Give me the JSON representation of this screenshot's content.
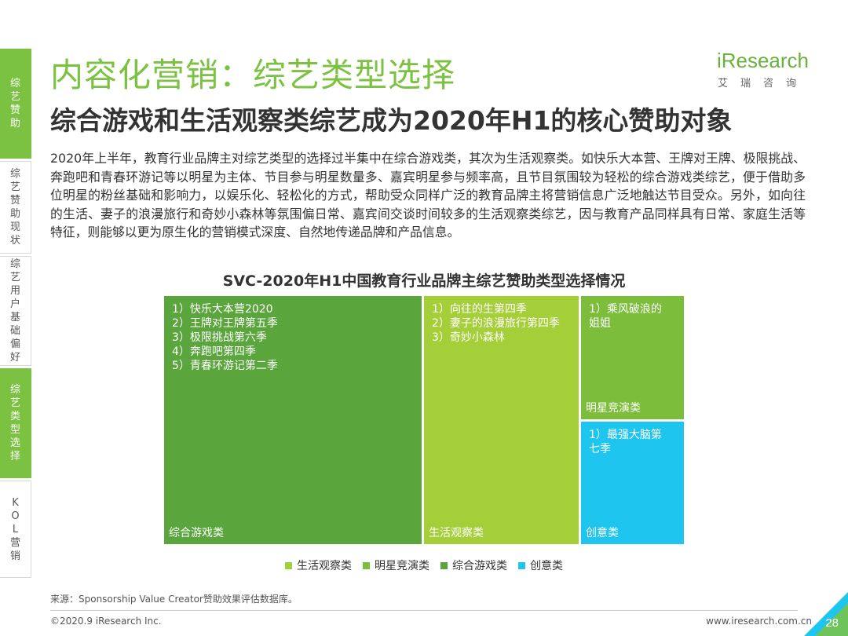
{
  "side_nav": [
    {
      "label": "综艺赞助",
      "active": true
    },
    {
      "label": "综艺赞助现状",
      "active": false
    },
    {
      "label": "综艺用户基础偏好",
      "active": false
    },
    {
      "label": "综艺类型选择",
      "active": true
    },
    {
      "label": "KOL营销",
      "active": false
    }
  ],
  "header": {
    "title": "内容化营销：综艺类型选择",
    "subtitle": "综合游戏和生活观察类综艺成为2020年H1的核心赞助对象"
  },
  "logo": {
    "word": "iResearch",
    "sub": "艾瑞咨询"
  },
  "body_text": "2020年上半年，教育行业品牌主对综艺类型的选择过半集中在综合游戏类，其次为生活观察类。如快乐大本营、王牌对王牌、极限挑战、奔跑吧和青春环游记等以明星为主体、节目参与明星数量多、嘉宾明星参与频率高，且节目氛围较为轻松的综合游戏类综艺，便于借助多位明星的粉丝基础和影响力，以娱乐化、轻松化的方式，帮助受众同样广泛的教育品牌主将营销信息广泛地触达节目受众。另外，如向往的生活、妻子的浪漫旅行和奇妙小森林等氛围偏日常、嘉宾间交谈时间较多的生活观察类综艺，因与教育产品同样具有日常、家庭生活等特征，则能够以更为原生化的营销模式深度、自然地传递品牌和产品信息。",
  "chart_data": {
    "type": "treemap",
    "title": "SVC-2020年H1中国教育行业品牌主综艺赞助类型选择情况",
    "nodes": [
      {
        "category": "综合游戏类",
        "value": 50,
        "color": "#5aa53c",
        "items": [
          "1）快乐大本营2020",
          "2）王牌对王牌第五季",
          "3）极限挑战第六季",
          "4）奔跑吧第四季",
          "5）青春环游记第二季"
        ]
      },
      {
        "category": "生活观察类",
        "value": 30,
        "color": "#a5cf38",
        "items": [
          "1）向往的生第四季",
          "2）妻子的浪漫旅行第四季",
          "3）奇妙小森林"
        ]
      },
      {
        "category": "明星竞演类",
        "value": 10,
        "color": "#7cbd3c",
        "items": [
          "1）乘风破浪的",
          "姐姐"
        ]
      },
      {
        "category": "创意类",
        "value": 10,
        "color": "#1ec5ee",
        "items": [
          "1）最强大脑第",
          "七季"
        ]
      }
    ],
    "legend": [
      {
        "label": "生活观察类",
        "color": "#a5cf38"
      },
      {
        "label": "明星竞演类",
        "color": "#7cbd3c"
      },
      {
        "label": "综合游戏类",
        "color": "#5aa53c"
      },
      {
        "label": "创意类",
        "color": "#1ec5ee"
      }
    ]
  },
  "footer": {
    "source": "来源：Sponsorship Value Creator赞助效果评估数据库。",
    "copyright": "©2020.9 iResearch Inc.",
    "website": "www.iresearch.com.cn",
    "page": "28"
  }
}
